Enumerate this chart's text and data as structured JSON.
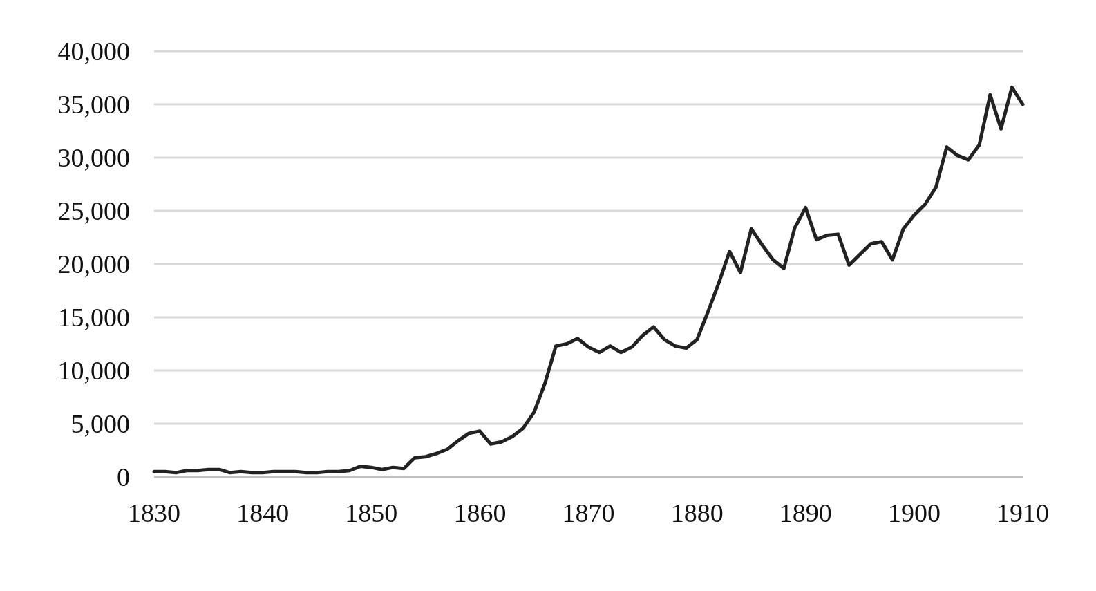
{
  "chart_data": {
    "type": "line",
    "x": [
      1830,
      1831,
      1832,
      1833,
      1834,
      1835,
      1836,
      1837,
      1838,
      1839,
      1840,
      1841,
      1842,
      1843,
      1844,
      1845,
      1846,
      1847,
      1848,
      1849,
      1850,
      1851,
      1852,
      1853,
      1854,
      1855,
      1856,
      1857,
      1858,
      1859,
      1860,
      1861,
      1862,
      1863,
      1864,
      1865,
      1866,
      1867,
      1868,
      1869,
      1870,
      1871,
      1872,
      1873,
      1874,
      1875,
      1876,
      1877,
      1878,
      1879,
      1880,
      1881,
      1882,
      1883,
      1884,
      1885,
      1886,
      1887,
      1888,
      1889,
      1890,
      1891,
      1892,
      1893,
      1894,
      1895,
      1896,
      1897,
      1898,
      1899,
      1900,
      1901,
      1902,
      1903,
      1904,
      1905,
      1906,
      1907,
      1908,
      1909,
      1910
    ],
    "series": [
      {
        "color": "#222222",
        "values": [
          500,
          500,
          400,
          600,
          600,
          700,
          700,
          400,
          500,
          400,
          400,
          500,
          500,
          500,
          400,
          400,
          500,
          500,
          600,
          1000,
          900,
          700,
          900,
          800,
          1800,
          1900,
          2200,
          2600,
          3400,
          4100,
          4300,
          3100,
          3300,
          3800,
          4600,
          6100,
          8800,
          12300,
          12500,
          13000,
          12200,
          11700,
          12300,
          11700,
          12200,
          13300,
          14100,
          12900,
          12300,
          12100,
          12900,
          15500,
          18200,
          21200,
          19200,
          23300,
          21800,
          20400,
          19600,
          23400,
          25300,
          22300,
          22700,
          22800,
          19900,
          20900,
          21900,
          22100,
          20400,
          23300,
          24600,
          25600,
          27200,
          31000,
          30200,
          29800,
          31200,
          35900,
          32700,
          36600,
          35000
        ]
      }
    ],
    "xlim": [
      1830,
      1910
    ],
    "xticks": [
      1830,
      1840,
      1850,
      1860,
      1870,
      1880,
      1890,
      1900,
      1910
    ],
    "ylim": [
      0,
      40000
    ],
    "yticks": [
      {
        "value": 0,
        "label": "0"
      },
      {
        "value": 5000,
        "label": "5,000"
      },
      {
        "value": 10000,
        "label": "10,000"
      },
      {
        "value": 15000,
        "label": "15,000"
      },
      {
        "value": 20000,
        "label": "20,000"
      },
      {
        "value": 25000,
        "label": "25,000"
      },
      {
        "value": 30000,
        "label": "30,000"
      },
      {
        "value": 35000,
        "label": "35,000"
      },
      {
        "value": 40000,
        "label": "40,000"
      }
    ],
    "grid": "y",
    "marker": "none",
    "line_style": "solid"
  }
}
